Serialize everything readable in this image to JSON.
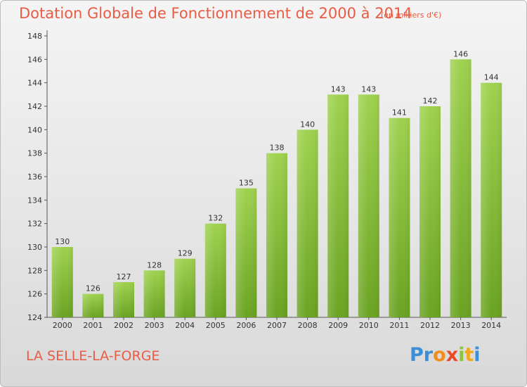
{
  "header": {
    "title": "Dotation Globale de Fonctionnement de 2000 à 2014",
    "unit": "(en milliers d'€)"
  },
  "entity_name": "LA SELLE-LA-FORGE",
  "logo": {
    "text": "Proxiti",
    "letters": [
      {
        "ch": "P",
        "color": "#3a8fd6"
      },
      {
        "ch": "r",
        "color": "#3a8fd6"
      },
      {
        "ch": "o",
        "color": "#f28c1c"
      },
      {
        "ch": "x",
        "color": "#e84a2a"
      },
      {
        "ch": "i",
        "color": "#8cc63f"
      },
      {
        "ch": "t",
        "color": "#f2a71c"
      },
      {
        "ch": "i",
        "color": "#3a8fd6"
      }
    ]
  },
  "colors": {
    "bar_light": "#9fd24f",
    "bar_dark": "#6aa322",
    "axis": "#555555",
    "grid_tick": "#555555",
    "title": "#e85c45"
  },
  "chart_data": {
    "type": "bar",
    "title": "Dotation Globale de Fonctionnement de 2000 à 2014",
    "subtitle": "(en milliers d'€)",
    "xlabel": "",
    "ylabel": "",
    "categories": [
      "2000",
      "2001",
      "2002",
      "2003",
      "2004",
      "2005",
      "2006",
      "2007",
      "2008",
      "2009",
      "2010",
      "2011",
      "2012",
      "2013",
      "2014"
    ],
    "values": [
      130,
      126,
      127,
      128,
      129,
      132,
      135,
      138,
      140,
      143,
      143,
      141,
      142,
      146,
      144
    ],
    "ylim": [
      124,
      148
    ],
    "yticks": [
      124,
      126,
      128,
      130,
      132,
      134,
      136,
      138,
      140,
      142,
      144,
      146,
      148
    ],
    "grid": false,
    "legend": "none"
  }
}
